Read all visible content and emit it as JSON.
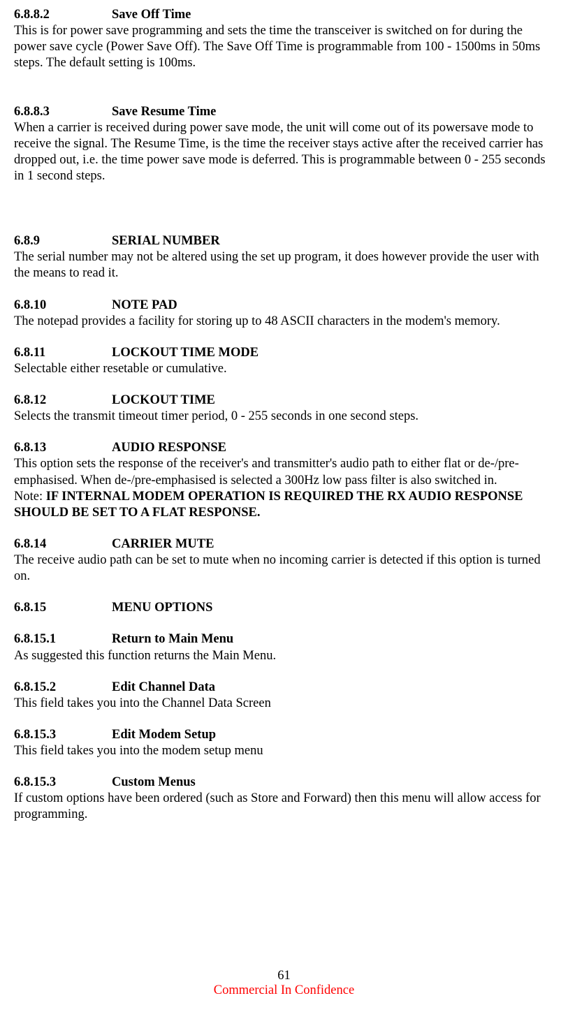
{
  "sections": {
    "s6882": {
      "num": "6.8.8.2",
      "title": "Save Off Time",
      "body": "This is for power save programming and sets the time the transceiver is switched on for during the power save cycle (Power Save Off). The Save Off Time is programmable from 100 - 1500ms in 50ms steps. The default setting is 100ms."
    },
    "s6883": {
      "num": "6.8.8.3",
      "title": "Save Resume Time",
      "body": "When a carrier is received during power save mode, the unit will come out of its powersave mode to receive the signal. The Resume Time, is the time the receiver stays active after the received carrier has dropped out, i.e. the time power save mode is deferred. This is programmable between 0 - 255 seconds in 1 second steps."
    },
    "s689": {
      "num": "6.8.9",
      "title": "SERIAL NUMBER",
      "body": "The serial number may not be altered using the set up program, it does however provide the user with the means to read it."
    },
    "s6810": {
      "num": "6.8.10",
      "title": "NOTE PAD",
      "body": "The notepad provides a facility for storing up to 48 ASCII characters in the modem's memory."
    },
    "s6811": {
      "num": "6.8.11",
      "title": "LOCKOUT TIME MODE",
      "body": "Selectable either resetable or cumulative."
    },
    "s6812": {
      "num": "6.8.12",
      "title": "LOCKOUT TIME",
      "body": "Selects the transmit timeout timer period, 0 - 255 seconds in one second steps."
    },
    "s6813": {
      "num": "6.8.13",
      "title": "AUDIO RESPONSE",
      "body": "This option sets the response of the receiver's and transmitter's audio path to either flat or de-/pre-emphasised. When de-/pre-emphasised is selected a 300Hz low pass filter is also switched in.",
      "note_prefix": "Note: ",
      "note_bold": "IF INTERNAL MODEM OPERATION IS REQUIRED THE RX AUDIO RESPONSE SHOULD BE SET TO A FLAT RESPONSE."
    },
    "s6814": {
      "num": "6.8.14",
      "title": "CARRIER MUTE",
      "body": "The receive audio path can be set to mute when no incoming carrier is detected if this option is turned on."
    },
    "s6815": {
      "num": "6.8.15",
      "title": "MENU OPTIONS"
    },
    "s68151": {
      "num": "6.8.15.1",
      "title": "Return to Main Menu",
      "body": "As suggested this function returns the Main Menu."
    },
    "s68152": {
      "num": "6.8.15.2",
      "title": "Edit Channel Data",
      "body": "This field takes you into the Channel Data Screen"
    },
    "s68153a": {
      "num": "6.8.15.3",
      "title": "Edit Modem Setup",
      "body": "This field takes you into the modem setup menu"
    },
    "s68153b": {
      "num": "6.8.15.3",
      "title": "Custom Menus",
      "body": "If custom options have been ordered (such as Store and Forward) then this menu will allow access for programming."
    }
  },
  "footer": {
    "page_num": "61",
    "confidential": "Commercial In Confidence"
  }
}
